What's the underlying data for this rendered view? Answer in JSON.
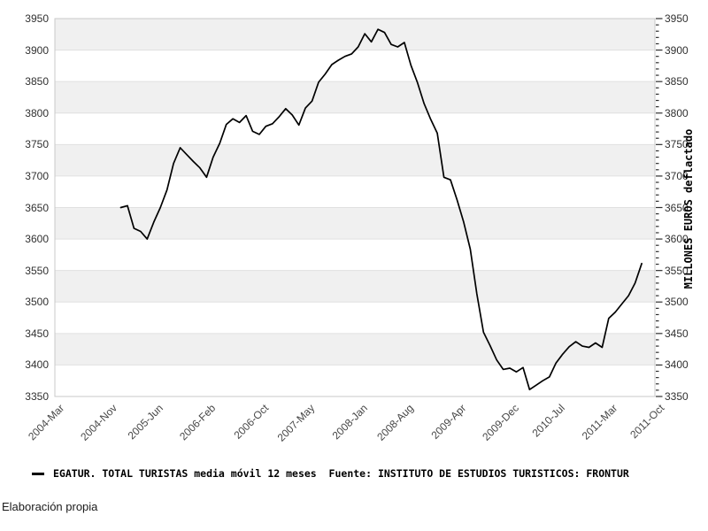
{
  "page": {
    "footer": "Elaboración propia"
  },
  "legend": {
    "marker": "—",
    "label": "EGATUR. TOTAL TURISTAS media móvil 12 meses  Fuente: INSTITUTO DE ESTUDIOS TURISTICOS: FRONTUR"
  },
  "chart_data": {
    "type": "line",
    "title": "",
    "xlabel": "",
    "ylabel": "MILLONES EUROS deflactado",
    "y_axis": {
      "min": 3350,
      "max": 3950,
      "step": 50,
      "minor_step": 10,
      "ticks": [
        3350,
        3400,
        3450,
        3500,
        3550,
        3600,
        3650,
        3700,
        3750,
        3800,
        3850,
        3900,
        3950
      ],
      "right_label": "MILLONES EUROS deflactado"
    },
    "x_axis": {
      "tick_labels": [
        "2004-Mar",
        "2004-Nov",
        "2005-Jun",
        "2006-Feb",
        "2006-Oct",
        "2007-May",
        "2008-Jan",
        "2008-Aug",
        "2009-Apr",
        "2009-Dec",
        "2010-Jul",
        "2011-Mar",
        "2011-Oct"
      ],
      "tick_month_offsets": [
        0,
        8,
        15,
        23,
        31,
        38,
        46,
        53,
        61,
        69,
        76,
        84,
        91
      ],
      "total_months": 91
    },
    "series": [
      {
        "name": "EGATUR. TOTAL TURISTAS media móvil 12 meses",
        "color": "#000000",
        "start_month": "2005-Jan",
        "start_month_offset": 10,
        "months_per_point": 1,
        "values": [
          3650,
          3653,
          3617,
          3612,
          3600,
          3627,
          3650,
          3678,
          3720,
          3745,
          3734,
          3723,
          3713,
          3698,
          3730,
          3752,
          3782,
          3791,
          3785,
          3796,
          3771,
          3766,
          3779,
          3783,
          3794,
          3807,
          3797,
          3781,
          3808,
          3819,
          3849,
          3862,
          3877,
          3884,
          3890,
          3894,
          3905,
          3926,
          3913,
          3933,
          3928,
          3909,
          3905,
          3912,
          3876,
          3848,
          3815,
          3790,
          3768,
          3698,
          3694,
          3662,
          3627,
          3584,
          3513,
          3452,
          3431,
          3408,
          3393,
          3395,
          3389,
          3396,
          3361,
          3368,
          3375,
          3381,
          3403,
          3417,
          3429,
          3437,
          3430,
          3428,
          3435,
          3428,
          3474,
          3484,
          3497,
          3510,
          3530,
          3561
        ]
      }
    ],
    "grid": true,
    "legend_position": "bottom-left",
    "colors": {
      "line": "#000000",
      "band_shaded": "#f0f0f0",
      "band_plain": "#ffffff",
      "grid_line": "#e0e0e0",
      "plot_border": "#c9c9c9",
      "tick_mark": "#2e2e2e"
    }
  }
}
